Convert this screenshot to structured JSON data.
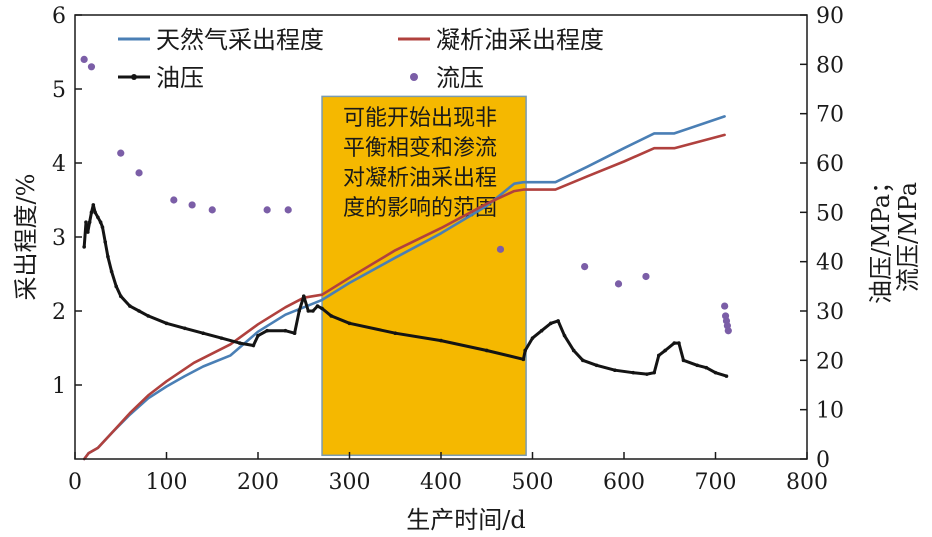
{
  "chart_data": {
    "type": "line",
    "xlabel": "生产时间/d",
    "ylabel_left": "采出程度/%",
    "ylabel_right_lines": [
      "油压/MPa；",
      "流压/MPa"
    ],
    "xlim": [
      0,
      800
    ],
    "ylim_left": [
      0,
      6
    ],
    "ylim_right": [
      0,
      90
    ],
    "x_ticks": [
      0,
      100,
      200,
      300,
      400,
      500,
      600,
      700,
      800
    ],
    "y_left_ticks": [
      1,
      2,
      3,
      4,
      5,
      6
    ],
    "y_right_ticks": [
      0,
      10,
      20,
      30,
      40,
      50,
      60,
      70,
      80,
      90
    ],
    "grid": false,
    "legend_position": "top",
    "colors": {
      "gas": "#4a7fb5",
      "condensate": "#b0413e",
      "oil_pressure": "#141414",
      "flow_pressure": "#7b5ea7",
      "highlight_fill": "#f5b800",
      "highlight_border": "#7a9bb0"
    },
    "series": [
      {
        "name": "天然气采出程度",
        "axis": "left",
        "style": "line",
        "points": [
          [
            10,
            0
          ],
          [
            15,
            0.08
          ],
          [
            25,
            0.15
          ],
          [
            40,
            0.35
          ],
          [
            60,
            0.6
          ],
          [
            80,
            0.82
          ],
          [
            100,
            0.98
          ],
          [
            120,
            1.12
          ],
          [
            140,
            1.25
          ],
          [
            170,
            1.4
          ],
          [
            200,
            1.72
          ],
          [
            230,
            1.95
          ],
          [
            250,
            2.05
          ],
          [
            270,
            2.15
          ],
          [
            300,
            2.38
          ],
          [
            350,
            2.72
          ],
          [
            400,
            3.05
          ],
          [
            450,
            3.42
          ],
          [
            480,
            3.72
          ],
          [
            490,
            3.74
          ],
          [
            525,
            3.74
          ],
          [
            560,
            3.95
          ],
          [
            600,
            4.2
          ],
          [
            633,
            4.4
          ],
          [
            655,
            4.4
          ],
          [
            710,
            4.63
          ]
        ]
      },
      {
        "name": "凝析油采出程度",
        "axis": "left",
        "style": "line",
        "points": [
          [
            10,
            0
          ],
          [
            15,
            0.08
          ],
          [
            25,
            0.15
          ],
          [
            40,
            0.35
          ],
          [
            60,
            0.62
          ],
          [
            80,
            0.86
          ],
          [
            100,
            1.05
          ],
          [
            130,
            1.3
          ],
          [
            170,
            1.55
          ],
          [
            200,
            1.82
          ],
          [
            230,
            2.05
          ],
          [
            250,
            2.18
          ],
          [
            270,
            2.22
          ],
          [
            300,
            2.45
          ],
          [
            350,
            2.82
          ],
          [
            400,
            3.12
          ],
          [
            450,
            3.45
          ],
          [
            480,
            3.62
          ],
          [
            490,
            3.64
          ],
          [
            525,
            3.64
          ],
          [
            560,
            3.82
          ],
          [
            600,
            4.02
          ],
          [
            633,
            4.2
          ],
          [
            655,
            4.2
          ],
          [
            710,
            4.38
          ]
        ]
      },
      {
        "name": "油压",
        "axis": "right",
        "style": "line-marker",
        "points": [
          [
            10,
            43
          ],
          [
            12,
            48
          ],
          [
            14,
            46
          ],
          [
            16,
            48
          ],
          [
            18,
            50
          ],
          [
            20,
            51.5
          ],
          [
            22,
            50
          ],
          [
            25,
            49
          ],
          [
            28,
            48
          ],
          [
            30,
            47
          ],
          [
            33,
            44
          ],
          [
            36,
            41
          ],
          [
            40,
            38
          ],
          [
            45,
            35
          ],
          [
            50,
            33
          ],
          [
            60,
            31
          ],
          [
            70,
            30
          ],
          [
            80,
            29
          ],
          [
            100,
            27.5
          ],
          [
            120,
            26.5
          ],
          [
            140,
            25.5
          ],
          [
            160,
            24.5
          ],
          [
            180,
            23.5
          ],
          [
            195,
            23
          ],
          [
            200,
            25
          ],
          [
            210,
            26
          ],
          [
            230,
            26
          ],
          [
            240,
            25.5
          ],
          [
            245,
            30
          ],
          [
            250,
            33
          ],
          [
            255,
            30
          ],
          [
            260,
            30
          ],
          [
            265,
            31
          ],
          [
            270,
            30.5
          ],
          [
            280,
            29
          ],
          [
            300,
            27.5
          ],
          [
            350,
            25.5
          ],
          [
            400,
            24
          ],
          [
            450,
            22
          ],
          [
            490,
            20.2
          ],
          [
            492,
            22
          ],
          [
            500,
            24.5
          ],
          [
            510,
            26
          ],
          [
            520,
            27.5
          ],
          [
            528,
            28
          ],
          [
            535,
            25
          ],
          [
            545,
            22
          ],
          [
            555,
            20
          ],
          [
            570,
            19
          ],
          [
            590,
            18
          ],
          [
            610,
            17.5
          ],
          [
            625,
            17.2
          ],
          [
            633,
            17.5
          ],
          [
            638,
            21
          ],
          [
            645,
            22
          ],
          [
            655,
            23.5
          ],
          [
            660,
            23.5
          ],
          [
            665,
            20
          ],
          [
            680,
            19
          ],
          [
            690,
            18.5
          ],
          [
            700,
            17.5
          ],
          [
            712,
            16.8
          ]
        ]
      },
      {
        "name": "流压",
        "axis": "right",
        "style": "scatter",
        "points": [
          [
            10,
            81
          ],
          [
            18,
            79.5
          ],
          [
            50,
            62
          ],
          [
            70,
            58
          ],
          [
            108,
            52.5
          ],
          [
            128,
            51.5
          ],
          [
            150,
            50.5
          ],
          [
            210,
            50.5
          ],
          [
            233,
            50.5
          ],
          [
            465,
            42.5
          ],
          [
            557,
            39
          ],
          [
            594,
            35.5
          ],
          [
            624,
            37
          ],
          [
            710,
            31
          ],
          [
            711,
            29
          ],
          [
            712,
            28
          ],
          [
            713,
            27
          ],
          [
            714,
            26
          ]
        ]
      }
    ],
    "highlight_region": {
      "x_range": [
        270,
        493
      ],
      "y_range_left": [
        0.05,
        4.9
      ],
      "text_lines": [
        "可能开始出现非",
        "平衡相变和渗流",
        "对凝析油采出程",
        "度的影响的范围"
      ]
    }
  }
}
